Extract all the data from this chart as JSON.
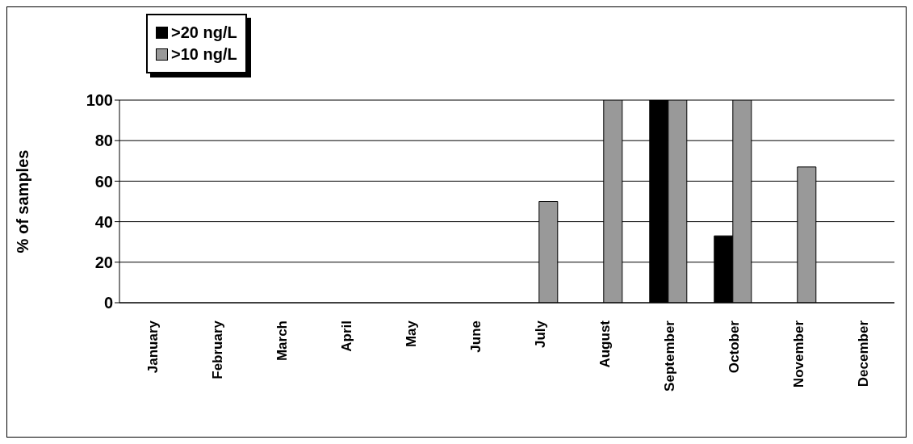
{
  "chart_data": {
    "type": "bar",
    "ylabel": "% of samples",
    "categories": [
      "January",
      "February",
      "March",
      "April",
      "May",
      "June",
      "July",
      "August",
      "September",
      "October",
      "November",
      "December"
    ],
    "series": [
      {
        "name": ">20 ng/L",
        "color": "#000000",
        "values": [
          0,
          0,
          0,
          0,
          0,
          0,
          0,
          0,
          100,
          33,
          0,
          0
        ]
      },
      {
        "name": ">10 ng/L",
        "color": "#999999",
        "values": [
          0,
          0,
          0,
          0,
          0,
          0,
          50,
          100,
          100,
          100,
          67,
          0
        ]
      }
    ],
    "ylim": [
      0,
      100
    ],
    "yticks": [
      0,
      20,
      40,
      60,
      80,
      100
    ],
    "grid": "y",
    "legend": "top left"
  }
}
